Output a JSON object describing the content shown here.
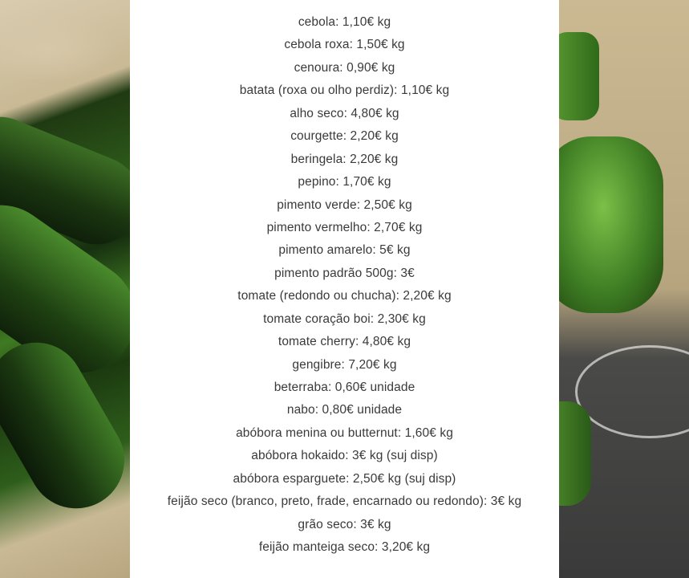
{
  "price_list": {
    "items": [
      "cebola: 1,10€ kg",
      "cebola roxa: 1,50€ kg",
      "cenoura: 0,90€ kg",
      "batata (roxa ou olho perdiz): 1,10€ kg",
      "alho seco: 4,80€ kg",
      "courgette: 2,20€ kg",
      "beringela: 2,20€ kg",
      "pepino: 1,70€ kg",
      "pimento verde: 2,50€ kg",
      "pimento vermelho: 2,70€ kg",
      "pimento amarelo: 5€ kg",
      "pimento padrão 500g: 3€",
      "tomate (redondo ou chucha): 2,20€ kg",
      "tomate coração boi: 2,30€ kg",
      "tomate cherry: 4,80€ kg",
      "gengibre: 7,20€ kg",
      "beterraba: 0,60€ unidade",
      "nabo: 0,80€ unidade",
      "abóbora menina ou butternut: 1,60€ kg",
      "abóbora hokaido: 3€ kg (suj disp)",
      "abóbora esparguete: 2,50€ kg (suj disp)",
      "feijão seco (branco, preto, frade, encarnado ou redondo): 3€ kg",
      "grão seco: 3€ kg",
      "feijão manteiga seco: 3,20€ kg"
    ]
  },
  "colors": {
    "panel": "#ffffff",
    "text": "#3a3a3a",
    "zucchini": "#2d5a1a",
    "burlap": "#c9b995"
  }
}
